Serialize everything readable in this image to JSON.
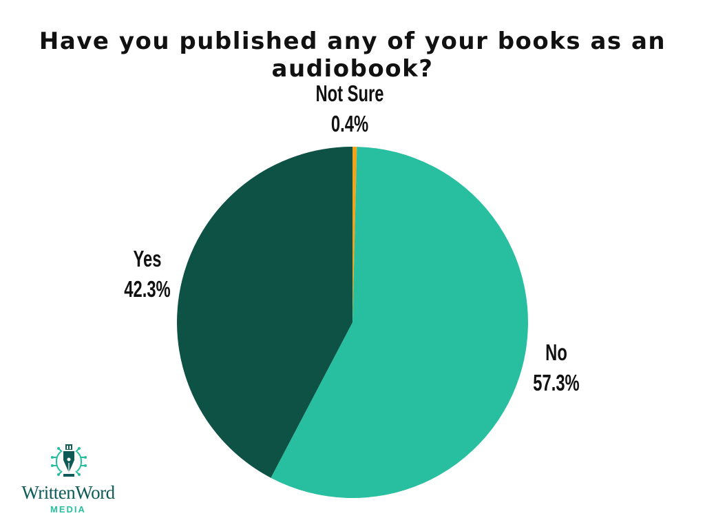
{
  "chart_data": {
    "type": "pie",
    "title": "Have you published any of your books as an audiobook?",
    "slices": [
      {
        "label": "Not Sure",
        "value": 0.4,
        "display": "0.4%",
        "color": "#f2a31c"
      },
      {
        "label": "No",
        "value": 57.3,
        "display": "57.3%",
        "color": "#27bfa0"
      },
      {
        "label": "Yes",
        "value": 42.3,
        "display": "42.3%",
        "color": "#0d5245"
      }
    ],
    "start_angle_deg": 0,
    "direction": "clockwise",
    "legend": "none"
  },
  "branding": {
    "wordmark": "WrittenWord",
    "subtext": "MEDIA",
    "colors": {
      "primary": "#0e5a56",
      "accent": "#27bfa0"
    },
    "icon": "fountain-pen-nib-circuit-icon"
  }
}
